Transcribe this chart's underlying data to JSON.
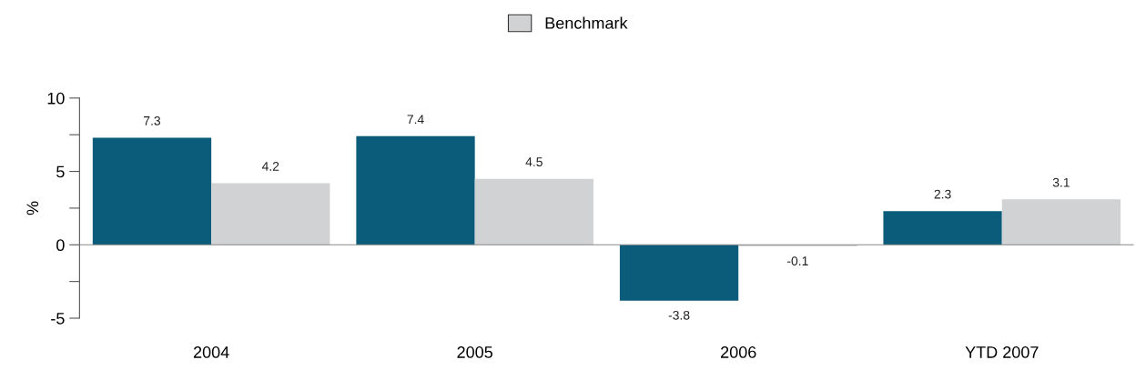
{
  "chart_data": {
    "type": "bar",
    "ylabel": "%",
    "categories": [
      "2004",
      "2005",
      "2006",
      "YTD 2007"
    ],
    "series": [
      {
        "color": "#0b5c7a",
        "values": [
          7.3,
          7.4,
          -3.8,
          2.3
        ]
      },
      {
        "name": "Benchmark",
        "color": "#d1d2d4",
        "values": [
          4.2,
          4.5,
          -0.1,
          3.1
        ]
      }
    ],
    "ylim": [
      -5,
      10
    ],
    "yticks": [
      -5,
      {
        "value": -2.5,
        "label": null
      },
      0,
      {
        "value": 2.5,
        "label": null
      },
      5,
      {
        "value": 7.5,
        "label": null
      },
      10
    ],
    "ref_lines": [
      {
        "axis": "y",
        "value": 0,
        "color": "#888888"
      }
    ],
    "data_labels": true,
    "legend": "top",
    "grid": false
  }
}
